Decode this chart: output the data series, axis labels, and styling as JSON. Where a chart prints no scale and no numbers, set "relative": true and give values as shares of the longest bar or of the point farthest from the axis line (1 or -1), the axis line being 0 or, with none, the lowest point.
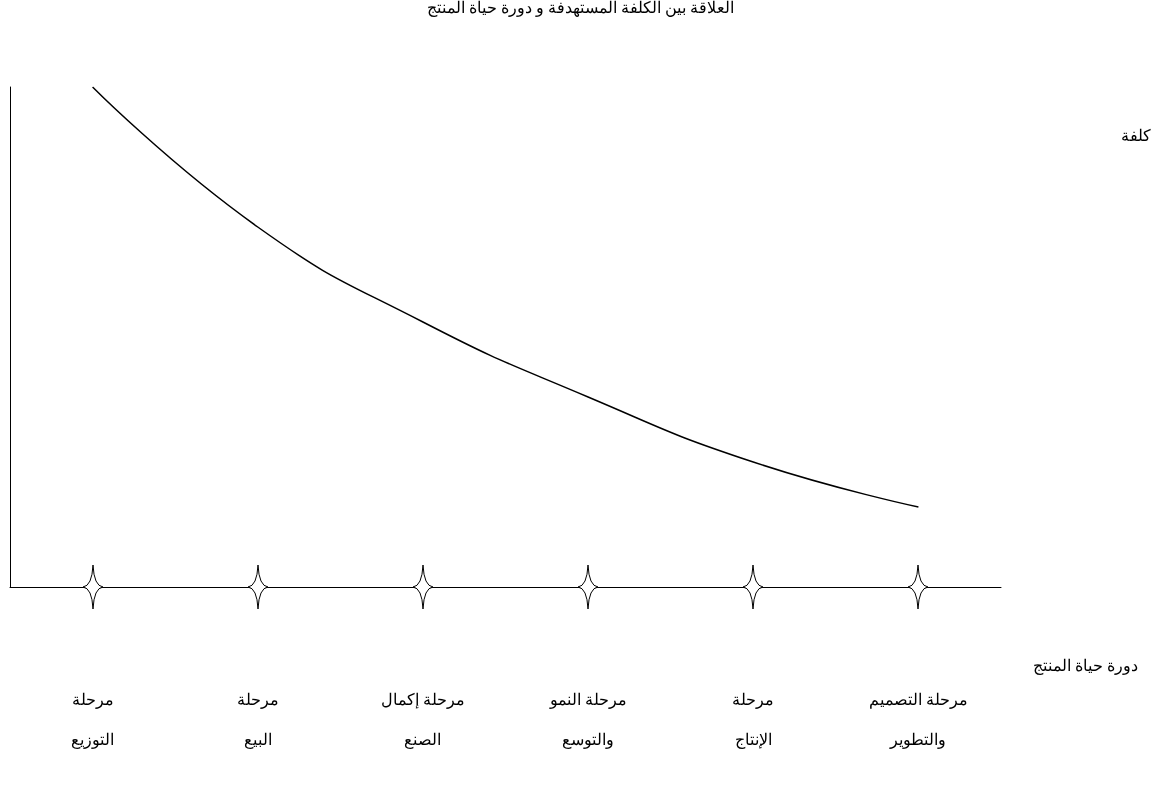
{
  "chart_data": {
    "type": "line",
    "title": "العلاقة بين الكلفة المستهدفة و دورة حياة المنتج",
    "xlabel": "دورة حياة المنتج",
    "annotations": [
      "كلفة"
    ],
    "categories": [
      "مرحلة\nالتوزيع",
      "مرحلة\nالبيع",
      "مرحلة إكمال\nالصنع",
      "مرحلة النمو\nوالتوسع",
      "مرحلة\nالإنتاج",
      "مرحلة التصميم\nوالتطوير"
    ],
    "series": [
      {
        "color": "#000000",
        "values": [
          1,
          0.72,
          0.53,
          0.38,
          0.25,
          0.16
        ]
      }
    ],
    "relative": true,
    "marker": "none",
    "line_style": "solid"
  }
}
